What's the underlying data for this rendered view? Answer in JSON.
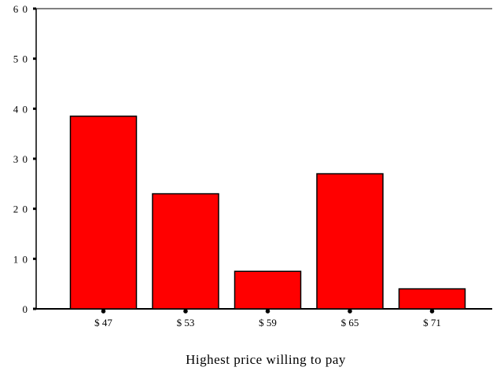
{
  "chart_data": {
    "type": "bar",
    "categories": [
      "$47",
      "$53",
      "$59",
      "$65",
      "$71"
    ],
    "values": [
      38.5,
      23,
      7.5,
      27,
      4
    ],
    "title": "",
    "xlabel": "Highest price willing to pay",
    "ylabel": "",
    "ylim": [
      0,
      60
    ],
    "yticks": [
      0,
      10,
      20,
      30,
      40,
      50,
      60
    ],
    "ytick_labels": [
      "0",
      "1 0",
      "2 0",
      "3 0",
      "4 0",
      "5 0",
      "6 0"
    ],
    "xtick_labels": [
      "$ 47",
      "$ 53",
      "$ 59",
      "$ 65",
      "$ 71"
    ],
    "grid": false,
    "legend": "none",
    "colors": {
      "bar_fill": "#ff0000",
      "bar_stroke": "#000000",
      "axis": "#000000",
      "text": "#000000"
    }
  }
}
